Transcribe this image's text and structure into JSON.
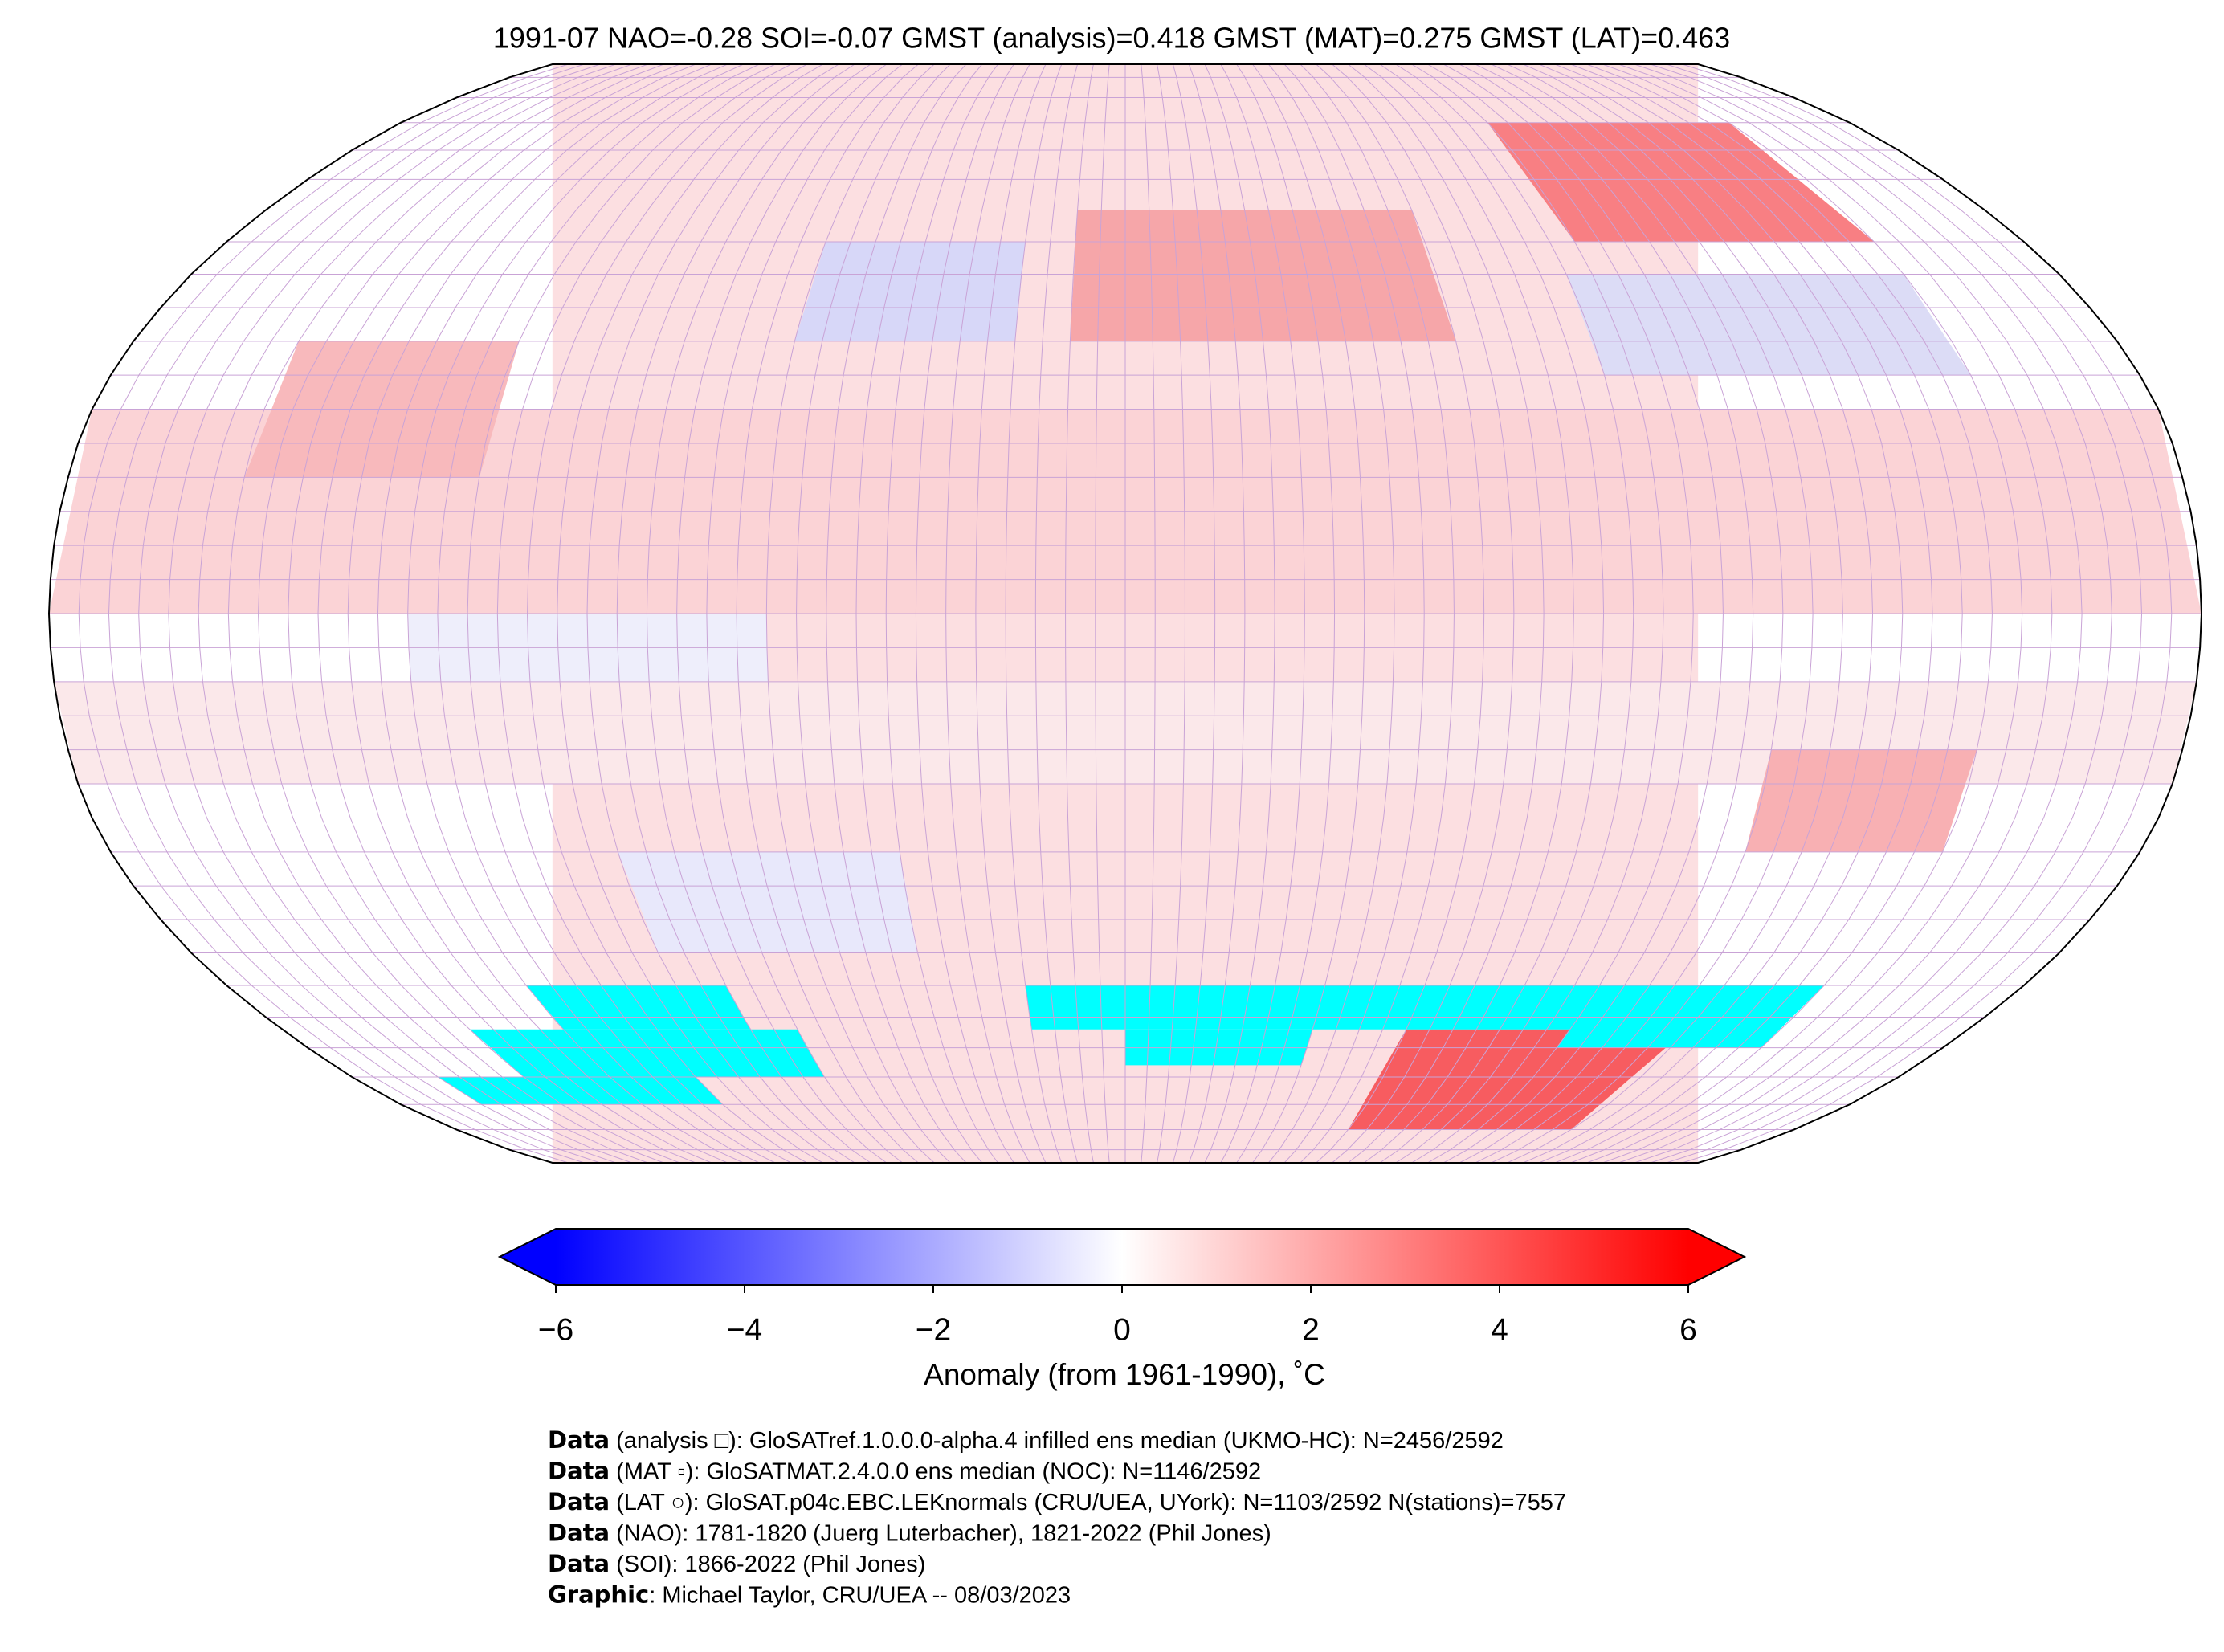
{
  "title": "1991-07 NAO=-0.28 SOI=-0.07 GMST (analysis)=0.418 GMST (MAT)=0.275 GMST (LAT)=0.463",
  "colorbar": {
    "label": "Anomaly (from 1961-1990), ˚C",
    "lim": [
      -6,
      6
    ],
    "extend": "both",
    "colors": [
      "#0000ff",
      "#ffffff",
      "#ff0000"
    ],
    "ticks": [
      {
        "value": -6,
        "label": "−6"
      },
      {
        "value": -4,
        "label": "−4"
      },
      {
        "value": -2,
        "label": "−2"
      },
      0,
      2,
      4,
      6
    ]
  },
  "footer": [
    {
      "bold": "Data",
      "text": " (analysis □): GloSATref.1.0.0.0-alpha.4 infilled ens median (UKMO-HC): N=2456/2592"
    },
    {
      "bold": "Data",
      "text": " (MAT ▫): GloSATMAT.2.4.0.0 ens median (NOC): N=1146/2592"
    },
    {
      "bold": "Data",
      "text": " (LAT ○): GloSAT.p04c.EBC.LEKnormals (CRU/UEA, UYork): N=1103/2592 N(stations)=7557"
    },
    {
      "bold": "Data",
      "text": " (NAO): 1781-1820 (Juerg Luterbacher), 1821-2022 (Phil Jones)"
    },
    {
      "bold": "Data",
      "text": " (SOI): 1866-2022 (Phil Jones)"
    },
    {
      "bold": "Graphic",
      "text": ": Michael Taylor, CRU/UEA -- 08/03/2023"
    }
  ]
}
